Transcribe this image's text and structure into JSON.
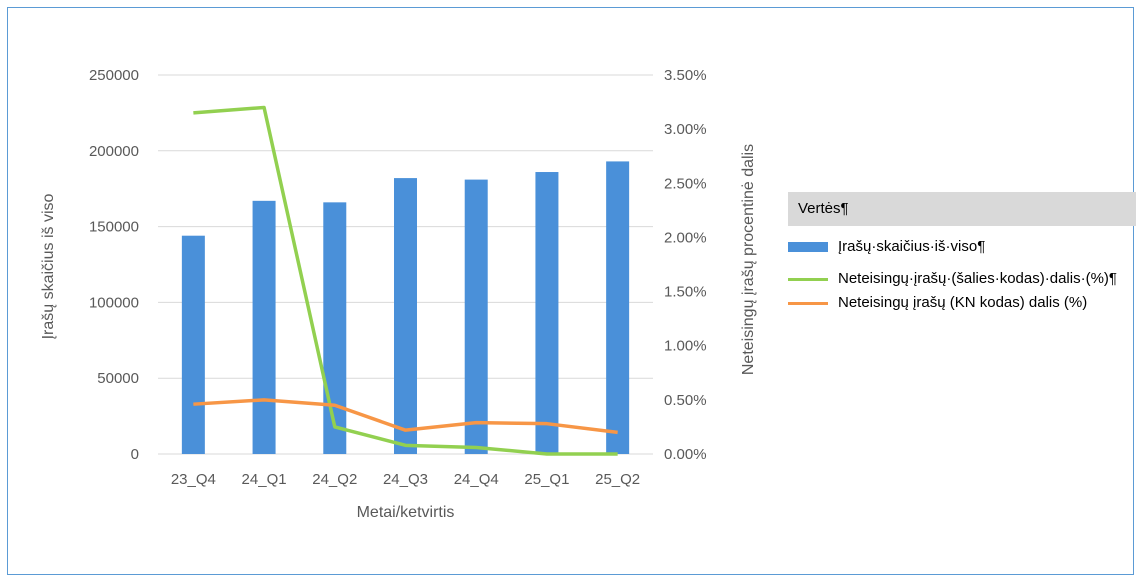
{
  "chart_data": {
    "type": "bar",
    "categories": [
      "23_Q4",
      "24_Q1",
      "24_Q2",
      "24_Q3",
      "24_Q4",
      "25_Q1",
      "25_Q2"
    ],
    "series": [
      {
        "name": "Įrašų·skaičius·iš·viso¶",
        "type": "bar",
        "axis": "left",
        "color": "#4a90d9",
        "values": [
          144000,
          167000,
          166000,
          182000,
          181000,
          186000,
          193000
        ]
      },
      {
        "name": "Neteisingų·įrašų·(šalies·kodas)·dalis·(%)¶",
        "type": "line",
        "axis": "right",
        "color": "#92d050",
        "values": [
          3.15,
          3.2,
          0.25,
          0.08,
          0.06,
          0.0,
          0.0
        ]
      },
      {
        "name": "Neteisingų įrašų (KN kodas) dalis (%)",
        "type": "line",
        "axis": "right",
        "color": "#f79646",
        "values": [
          0.46,
          0.5,
          0.45,
          0.22,
          0.29,
          0.28,
          0.2
        ]
      }
    ],
    "xlabel": "Metai/ketvirtis",
    "ylabel": "Įrašų skaičius iš viso",
    "y2label": "Neteisingų įrašų procentinė dalis",
    "ylim": [
      0,
      250000
    ],
    "yticks": [
      "0",
      "50000",
      "100000",
      "150000",
      "200000",
      "250000"
    ],
    "y2lim": [
      0,
      3.5
    ],
    "y2ticks": [
      "0.00%",
      "0.50%",
      "1.00%",
      "1.50%",
      "2.00%",
      "2.50%",
      "3.00%",
      "3.50%"
    ],
    "grid": true,
    "legend_position": "right",
    "legend_title": "Vertės¶"
  }
}
